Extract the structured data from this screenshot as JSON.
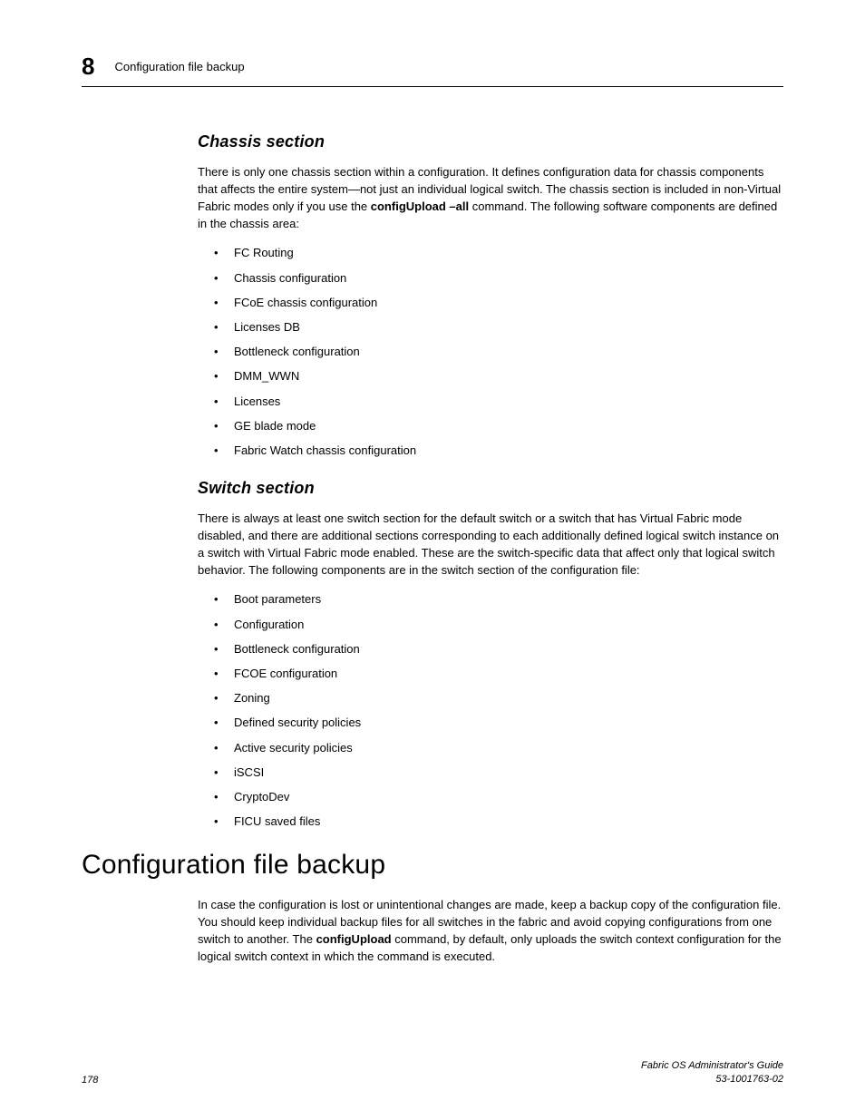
{
  "header": {
    "chapter_number": "8",
    "running_title": "Configuration file backup"
  },
  "section1": {
    "heading": "Chassis section",
    "para_pre": "There is only one chassis section within a configuration. It defines configuration data for chassis components that affects the entire system—not just an individual logical switch. The chassis section is included in non-Virtual Fabric modes only if you use the ",
    "cmd1": "configUpload",
    "cmd2": " –all",
    "para_post": " command. The following software components are defined in the chassis area:",
    "bullets": [
      "FC Routing",
      "Chassis configuration",
      "FCoE chassis configuration",
      "Licenses DB",
      "Bottleneck configuration",
      "DMM_WWN",
      "Licenses",
      "GE blade mode",
      "Fabric Watch chassis configuration"
    ]
  },
  "section2": {
    "heading": "Switch section",
    "para": "There is always at least one switch section for the default switch or a switch that has Virtual Fabric mode disabled, and there are additional sections corresponding to each additionally defined logical switch instance on a switch with Virtual Fabric mode enabled. These are the switch-specific data that affect only that logical switch behavior. The following components are in the switch section of the configuration file:",
    "bullets": [
      "Boot parameters",
      "Configuration",
      "Bottleneck configuration",
      "FCOE configuration",
      "Zoning",
      "Defined security policies",
      "Active security policies",
      "iSCSI",
      "CryptoDev",
      "FICU saved files"
    ]
  },
  "main_heading": "Configuration file backup",
  "main_para_pre": "In case the configuration is lost or unintentional changes are made, keep a backup copy of the configuration file. You should keep individual backup files for all switches in the fabric and avoid copying configurations from one switch to another. The ",
  "main_cmd": "configUpload",
  "main_para_post": " command, by default, only uploads the switch context configuration for the logical switch context in which the command is executed.",
  "footer": {
    "page_number": "178",
    "doc_title": "Fabric OS Administrator's Guide",
    "doc_id": "53-1001763-02"
  }
}
